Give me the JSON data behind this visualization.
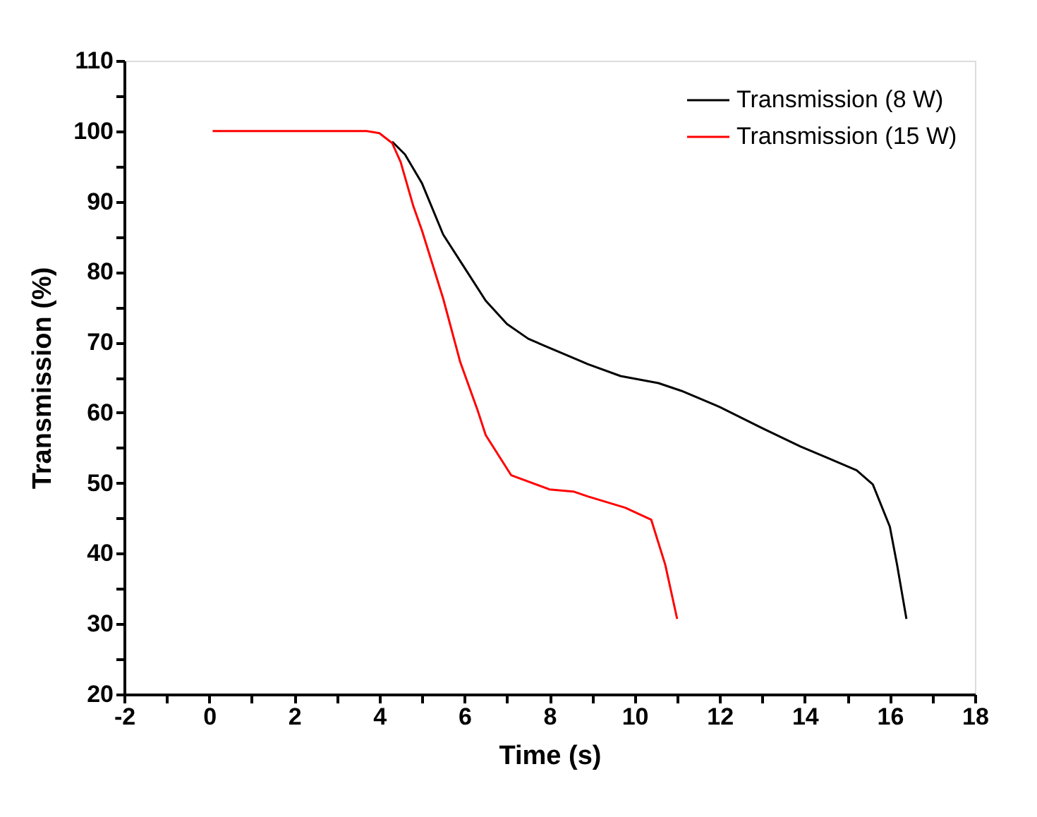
{
  "chart_data": {
    "type": "line",
    "xlabel": "Time (s)",
    "ylabel": "Transmission (%)",
    "xlim": [
      -2,
      18
    ],
    "ylim": [
      20,
      110
    ],
    "xticks": [
      -2,
      {
        "value": -1,
        "label": null
      },
      0,
      {
        "value": 1,
        "label": null
      },
      2,
      {
        "value": 3,
        "label": null
      },
      4,
      {
        "value": 5,
        "label": null
      },
      6,
      {
        "value": 7,
        "label": null
      },
      8,
      {
        "value": 9,
        "label": null
      },
      10,
      {
        "value": 11,
        "label": null
      },
      12,
      {
        "value": 13,
        "label": null
      },
      14,
      {
        "value": 15,
        "label": null
      },
      16,
      {
        "value": 17,
        "label": null
      },
      18
    ],
    "yticks": [
      20,
      {
        "value": 25,
        "label": null
      },
      30,
      {
        "value": 35,
        "label": null
      },
      40,
      {
        "value": 45,
        "label": null
      },
      50,
      {
        "value": 55,
        "label": null
      },
      60,
      {
        "value": 65,
        "label": null
      },
      70,
      {
        "value": 75,
        "label": null
      },
      80,
      {
        "value": 85,
        "label": null
      },
      90,
      {
        "value": 95,
        "label": null
      },
      100,
      {
        "value": 105,
        "label": null
      },
      110
    ],
    "grid": false,
    "legend": "top right",
    "marker": "none",
    "line_style": "solid",
    "series": [
      {
        "name": "Transmission (8 W)",
        "color": "#000000",
        "x": [
          4.3,
          4.6,
          5.0,
          5.5,
          6.0,
          6.5,
          7.0,
          7.5,
          8.0,
          8.9,
          9.67,
          10.56,
          11.1,
          12.0,
          13.0,
          13.9,
          14.56,
          15.22,
          15.6,
          16.0,
          16.17,
          16.39
        ],
        "values": [
          98.5,
          96.7,
          92.6,
          85.3,
          80.6,
          75.9,
          72.6,
          70.5,
          69.2,
          66.9,
          65.2,
          64.2,
          63.1,
          60.8,
          57.8,
          55.2,
          53.5,
          51.8,
          49.8,
          43.8,
          38.4,
          30.7
        ]
      },
      {
        "name": "Transmission (15 W)",
        "color": "#ff0000",
        "x": [
          0.08,
          3.0,
          3.7,
          4.0,
          4.3,
          4.5,
          4.8,
          5.0,
          5.5,
          5.9,
          6.3,
          6.5,
          7.1,
          8.0,
          8.56,
          8.9,
          9.78,
          10.39,
          10.72,
          11.0
        ],
        "values": [
          100,
          100,
          100,
          99.7,
          98.3,
          95.6,
          89.3,
          85.9,
          76.2,
          67.2,
          60.5,
          56.8,
          51.1,
          49.1,
          48.8,
          48.1,
          46.5,
          44.8,
          38.4,
          30.7
        ]
      }
    ]
  }
}
